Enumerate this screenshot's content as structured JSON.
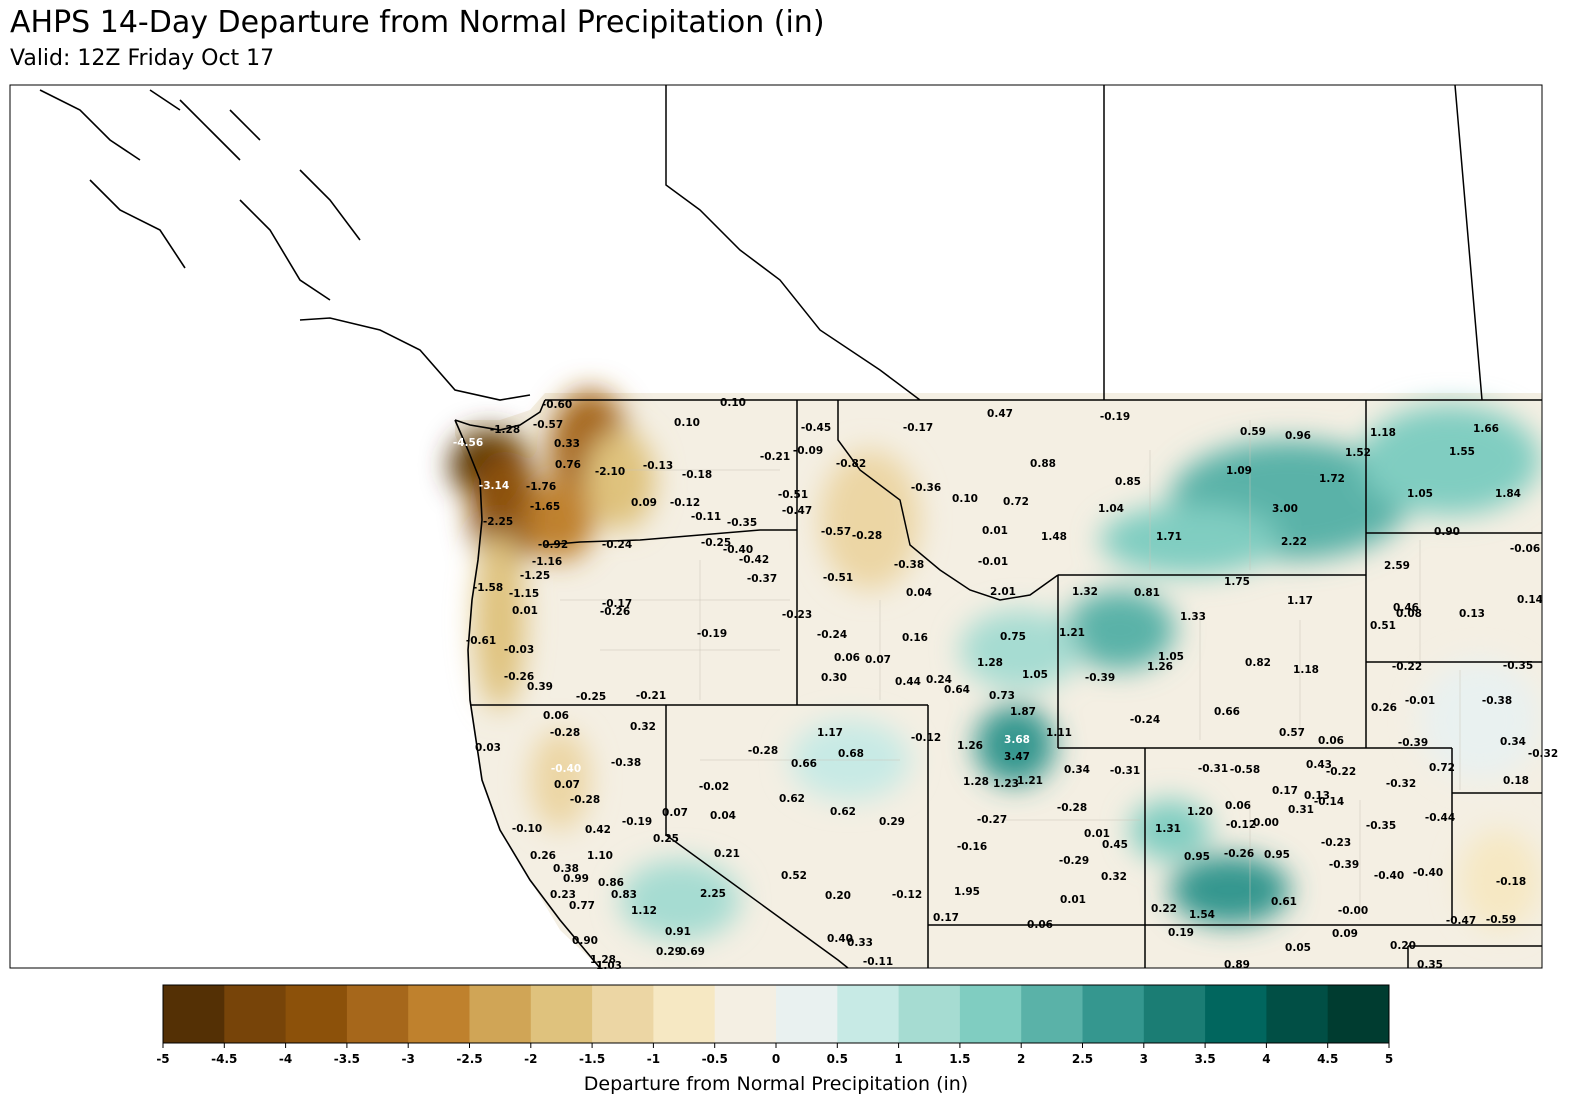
{
  "title": "AHPS 14-Day Departure from Normal Precipitation (in)",
  "subtitle": "Valid: 12Z Friday Oct 17",
  "colorbar": {
    "label": "Departure from Normal Precipitation (in)",
    "ticks": [
      -5,
      -4.5,
      -4,
      -3.5,
      -3,
      -2.5,
      -2,
      -1.5,
      -1,
      -0.5,
      0,
      0.5,
      1,
      1.5,
      2,
      2.5,
      3,
      3.5,
      4,
      4.5,
      5
    ],
    "colors": [
      "#543005",
      "#774409",
      "#8c510a",
      "#a6671b",
      "#bf812d",
      "#d0a556",
      "#dfc27d",
      "#ecd6a4",
      "#f6e8c3",
      "#f4efe3",
      "#e9f1f0",
      "#c7eae5",
      "#a6dcd2",
      "#80cdc1",
      "#5ab2a8",
      "#35978f",
      "#1b7d74",
      "#01665e",
      "#014f45",
      "#003c30"
    ]
  },
  "stations": [
    "0.10",
    "-0.60",
    "0.10",
    "-0.45",
    "-0.17",
    "0.47",
    "-0.19",
    "0.59",
    "0.96",
    "1.18",
    "1.66",
    "1.52",
    "1.55",
    "-4.56",
    "0.33",
    "-0.09",
    "-0.21",
    "-0.82",
    "0.88",
    "1.09",
    "1.72",
    "0.85",
    "0.76",
    "-2.10",
    "-0.13",
    "-0.18",
    "-3.14",
    "-1.76",
    "-0.36",
    "1.05",
    "1.84",
    "-1.65",
    "0.09",
    "-0.12",
    "-0.51",
    "0.10",
    "0.72",
    "1.04",
    "3.00",
    "-2.25",
    "-0.11",
    "-0.35",
    "-0.47",
    "-0.57",
    "-0.28",
    "0.01",
    "1.48",
    "1.71",
    "0.90",
    "-0.06",
    "-0.92",
    "-0.24",
    "-0.25",
    "-0.40",
    "2.22",
    "-1.16",
    "-0.42",
    "-0.38",
    "-0.01",
    "1.75",
    "2.59",
    "-1.25",
    "-0.37",
    "-0.51",
    "-1.58",
    "-1.15",
    "2.01",
    "1.32",
    "0.81",
    "1.17",
    "-0.17",
    "-0.26",
    "0.01",
    "0.04",
    "-0.23",
    "0.46",
    "0.08",
    "0.13",
    "0.14",
    "1.33",
    "0.51",
    "-0.61",
    "-0.19",
    "-0.24",
    "0.16",
    "0.75",
    "1.21",
    "-0.03",
    "0.06",
    "0.07",
    "1.05",
    "1.26",
    "0.82",
    "-0.22",
    "-0.35",
    "1.28",
    "-0.26",
    "0.30",
    "0.44",
    "0.24",
    "1.05",
    "-0.39",
    "1.18",
    "0.39",
    "0.64",
    "-0.25",
    "-0.21",
    "0.73",
    "0.26",
    "-0.01",
    "-0.38",
    "0.06",
    "1.87",
    "0.66",
    "-0.24",
    "0.32",
    "-0.28",
    "1.17",
    "-0.12",
    "1.26",
    "3.68",
    "1.11",
    "0.57",
    "0.06",
    "-0.39",
    "0.34",
    "-0.32",
    "0.03",
    "-0.28",
    "0.68",
    "3.47",
    "-0.40",
    "-0.38",
    "0.66",
    "0.34",
    "-0.31",
    "-0.31",
    "-0.58",
    "0.43",
    "-0.22",
    "0.72",
    "0.18",
    "0.07",
    "-0.02",
    "1.28",
    "1.23",
    "1.21",
    "0.17",
    "0.13",
    "-0.32",
    "-0.28",
    "0.62",
    "-0.14",
    "0.31",
    "-0.28",
    "1.20",
    "0.06",
    "0.07",
    "0.04",
    "0.62",
    "-0.19",
    "0.29",
    "-0.27",
    "-0.12",
    "0.00",
    "-0.44",
    "-0.35",
    "-0.10",
    "0.42",
    "1.31",
    "0.01",
    "0.45",
    "0.25",
    "-0.23",
    "-0.16",
    "0.21",
    "0.26",
    "1.10",
    "0.95",
    "-0.26",
    "0.95",
    "-0.29",
    "-0.39",
    "0.38",
    "0.32",
    "-0.40",
    "-0.40",
    "0.99",
    "0.86",
    "0.52",
    "-0.18",
    "0.23",
    "0.83",
    "2.25",
    "0.20",
    "-0.12",
    "1.95",
    "0.01",
    "0.61",
    "0.77",
    "1.12",
    "0.22",
    "1.54",
    "-0.00",
    "0.17",
    "0.06",
    "-0.47",
    "-0.59",
    "0.91",
    "0.19",
    "0.09",
    "0.90",
    "0.40",
    "0.33",
    "0.20",
    "0.29",
    "0.69",
    "0.05",
    "1.28",
    "1.03",
    "-0.11",
    "0.89",
    "0.35",
    "-1.28",
    "-0.57"
  ]
}
